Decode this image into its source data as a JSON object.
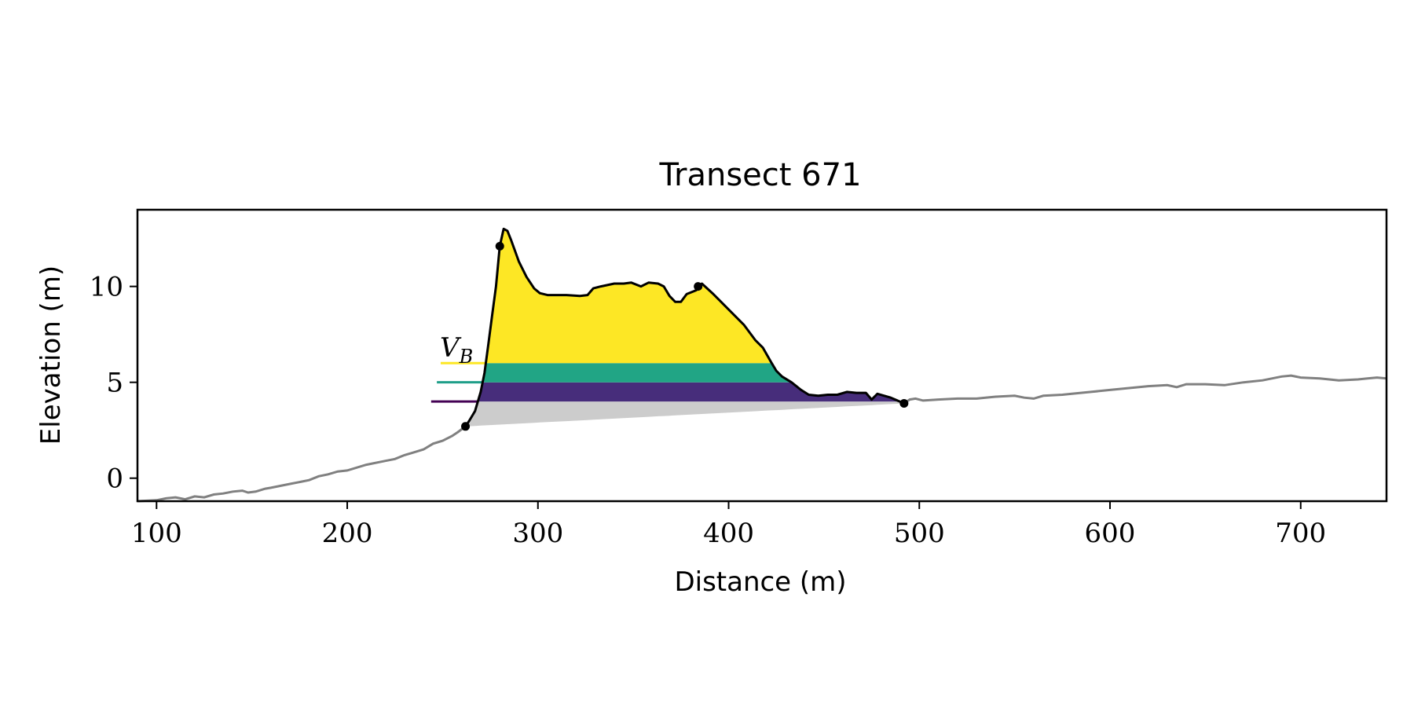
{
  "chart_data": {
    "type": "area",
    "title": "Transect 671",
    "xlabel": "Distance (m)",
    "ylabel": "Elevation (m)",
    "xlim": [
      90,
      745
    ],
    "ylim": [
      -1.2,
      14
    ],
    "xticks": [
      100,
      200,
      300,
      400,
      500,
      600,
      700
    ],
    "yticks": [
      0,
      5,
      10
    ],
    "grid": false,
    "legend": "none",
    "annotation": {
      "text": "V",
      "subscript": "B"
    },
    "colors": {
      "profile_gray": "#808080",
      "dune_line": "#000000",
      "base_fill": "#cccccc",
      "layer_top": "#fde725",
      "layer_mid": "#21a585",
      "layer_low": "#472d7b",
      "teal_mark": "#1f9e89",
      "purple_mark": "#440154"
    },
    "levels": {
      "low": 4.0,
      "mid": 5.0,
      "high": 6.0
    },
    "key_points": [
      {
        "x": 262,
        "y": 2.7
      },
      {
        "x": 280,
        "y": 12.1
      },
      {
        "x": 384,
        "y": 10.0
      },
      {
        "x": 492,
        "y": 3.9
      }
    ],
    "profile_left": [
      [
        90,
        -1.2
      ],
      [
        100,
        -1.15
      ],
      [
        105,
        -1.05
      ],
      [
        110,
        -1.0
      ],
      [
        115,
        -1.1
      ],
      [
        120,
        -0.95
      ],
      [
        125,
        -1.0
      ],
      [
        130,
        -0.85
      ],
      [
        135,
        -0.8
      ],
      [
        140,
        -0.7
      ],
      [
        145,
        -0.65
      ],
      [
        148,
        -0.75
      ],
      [
        152,
        -0.7
      ],
      [
        157,
        -0.55
      ],
      [
        160,
        -0.5
      ],
      [
        170,
        -0.3
      ],
      [
        180,
        -0.1
      ],
      [
        185,
        0.1
      ],
      [
        190,
        0.2
      ],
      [
        195,
        0.35
      ],
      [
        200,
        0.4
      ],
      [
        210,
        0.7
      ],
      [
        220,
        0.9
      ],
      [
        225,
        1.0
      ],
      [
        230,
        1.2
      ],
      [
        235,
        1.35
      ],
      [
        240,
        1.5
      ],
      [
        245,
        1.8
      ],
      [
        250,
        1.95
      ],
      [
        255,
        2.2
      ],
      [
        258,
        2.4
      ],
      [
        262,
        2.7
      ]
    ],
    "dune_profile": [
      [
        262,
        2.7
      ],
      [
        264,
        3.0
      ],
      [
        267,
        3.5
      ],
      [
        270,
        4.5
      ],
      [
        272,
        5.5
      ],
      [
        274,
        7.0
      ],
      [
        276,
        8.5
      ],
      [
        278,
        10.0
      ],
      [
        280,
        12.1
      ],
      [
        282,
        13.0
      ],
      [
        284,
        12.9
      ],
      [
        286,
        12.4
      ],
      [
        290,
        11.3
      ],
      [
        294,
        10.5
      ],
      [
        298,
        9.9
      ],
      [
        301,
        9.65
      ],
      [
        305,
        9.55
      ],
      [
        315,
        9.55
      ],
      [
        322,
        9.5
      ],
      [
        326,
        9.55
      ],
      [
        329,
        9.9
      ],
      [
        333,
        10.0
      ],
      [
        340,
        10.15
      ],
      [
        345,
        10.15
      ],
      [
        349,
        10.2
      ],
      [
        354,
        10.0
      ],
      [
        358,
        10.2
      ],
      [
        363,
        10.15
      ],
      [
        366,
        10.0
      ],
      [
        369,
        9.5
      ],
      [
        372,
        9.2
      ],
      [
        375,
        9.2
      ],
      [
        378,
        9.6
      ],
      [
        383,
        9.8
      ],
      [
        384,
        10.0
      ],
      [
        386,
        10.15
      ],
      [
        392,
        9.6
      ],
      [
        400,
        8.8
      ],
      [
        408,
        8.0
      ],
      [
        414,
        7.2
      ],
      [
        418,
        6.8
      ],
      [
        422,
        6.1
      ],
      [
        425,
        5.6
      ],
      [
        428,
        5.3
      ],
      [
        433,
        5.0
      ],
      [
        438,
        4.6
      ],
      [
        442,
        4.35
      ],
      [
        447,
        4.3
      ],
      [
        452,
        4.35
      ],
      [
        457,
        4.35
      ],
      [
        462,
        4.5
      ],
      [
        467,
        4.45
      ],
      [
        472,
        4.45
      ],
      [
        475,
        4.1
      ],
      [
        478,
        4.4
      ],
      [
        485,
        4.2
      ],
      [
        492,
        3.9
      ]
    ],
    "profile_right": [
      [
        492,
        3.9
      ],
      [
        495,
        4.1
      ],
      [
        498,
        4.15
      ],
      [
        502,
        4.05
      ],
      [
        510,
        4.1
      ],
      [
        520,
        4.15
      ],
      [
        530,
        4.15
      ],
      [
        540,
        4.25
      ],
      [
        550,
        4.3
      ],
      [
        555,
        4.2
      ],
      [
        560,
        4.15
      ],
      [
        565,
        4.3
      ],
      [
        575,
        4.35
      ],
      [
        580,
        4.4
      ],
      [
        590,
        4.5
      ],
      [
        600,
        4.6
      ],
      [
        610,
        4.7
      ],
      [
        620,
        4.8
      ],
      [
        630,
        4.85
      ],
      [
        635,
        4.75
      ],
      [
        640,
        4.9
      ],
      [
        650,
        4.9
      ],
      [
        660,
        4.85
      ],
      [
        670,
        5.0
      ],
      [
        680,
        5.1
      ],
      [
        690,
        5.3
      ],
      [
        695,
        5.35
      ],
      [
        700,
        5.25
      ],
      [
        710,
        5.2
      ],
      [
        715,
        5.15
      ],
      [
        720,
        5.1
      ],
      [
        730,
        5.15
      ],
      [
        735,
        5.2
      ],
      [
        740,
        5.25
      ],
      [
        745,
        5.2
      ]
    ]
  }
}
